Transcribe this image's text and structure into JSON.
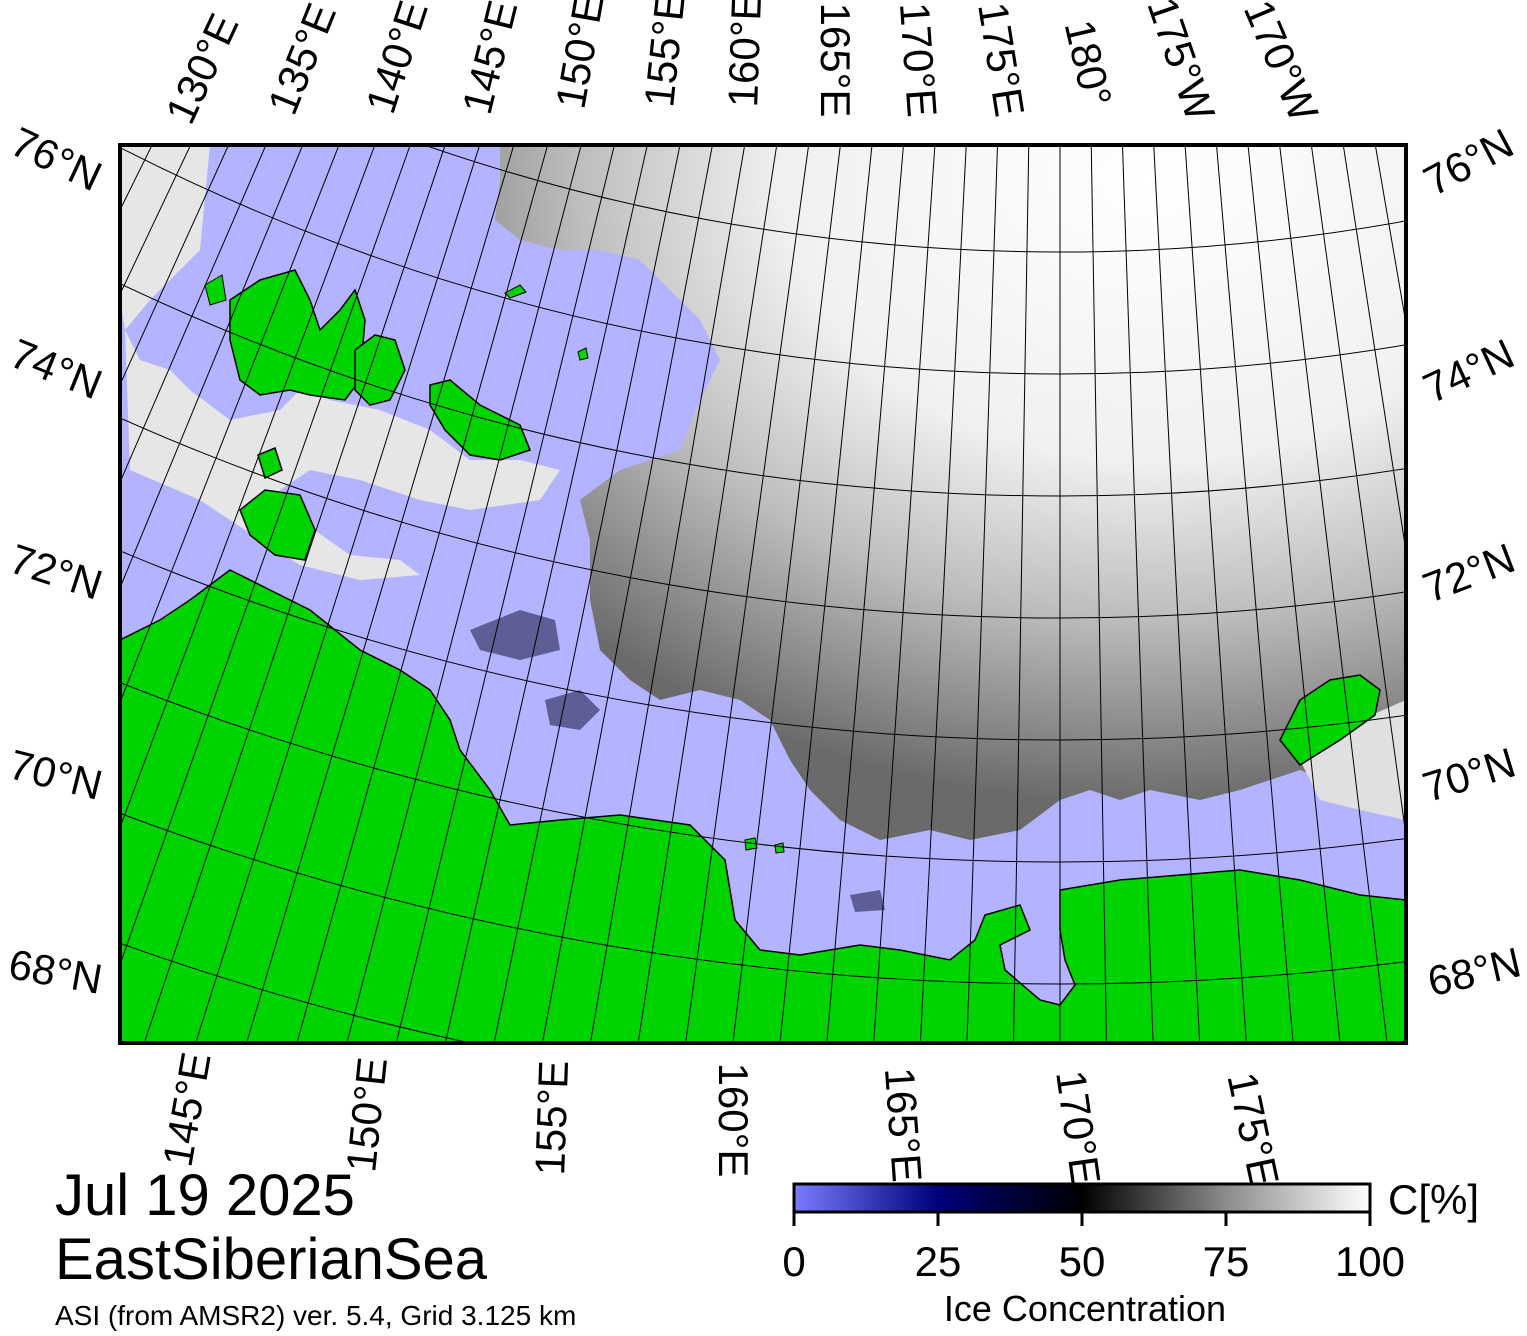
{
  "map": {
    "date": "Jul 19 2025",
    "region": "EastSiberianSea",
    "source": "ASI (from AMSR2) ver. 5.4,  Grid 3.125 km",
    "colors": {
      "land": "#00d400",
      "open_water": "#b3b3ff",
      "ice_high": "#ffffff",
      "ice_mid": "#000000",
      "ice_low": "#000080",
      "grid": "#000000",
      "missing": "#888888"
    },
    "top_lon_labels": [
      "130°E",
      "135°E",
      "140°E",
      "145°E",
      "150°E",
      "155°E",
      "160°E",
      "165°E",
      "170°E",
      "175°E",
      "180°",
      "175°W",
      "170°W"
    ],
    "bottom_lon_labels": [
      "145°E",
      "150°E",
      "155°E",
      "160°E",
      "165°E",
      "170°E",
      "175°E"
    ],
    "left_lat_labels": [
      "76°N",
      "74°N",
      "72°N",
      "70°N",
      "68°N"
    ],
    "right_lat_labels": [
      "76°N",
      "74°N",
      "72°N",
      "70°N",
      "68°N"
    ]
  },
  "colorbar": {
    "title": "Ice Concentration",
    "unit": "C[%]",
    "ticks": [
      "0",
      "25",
      "50",
      "75",
      "100"
    ],
    "min": 0,
    "max": 100
  }
}
